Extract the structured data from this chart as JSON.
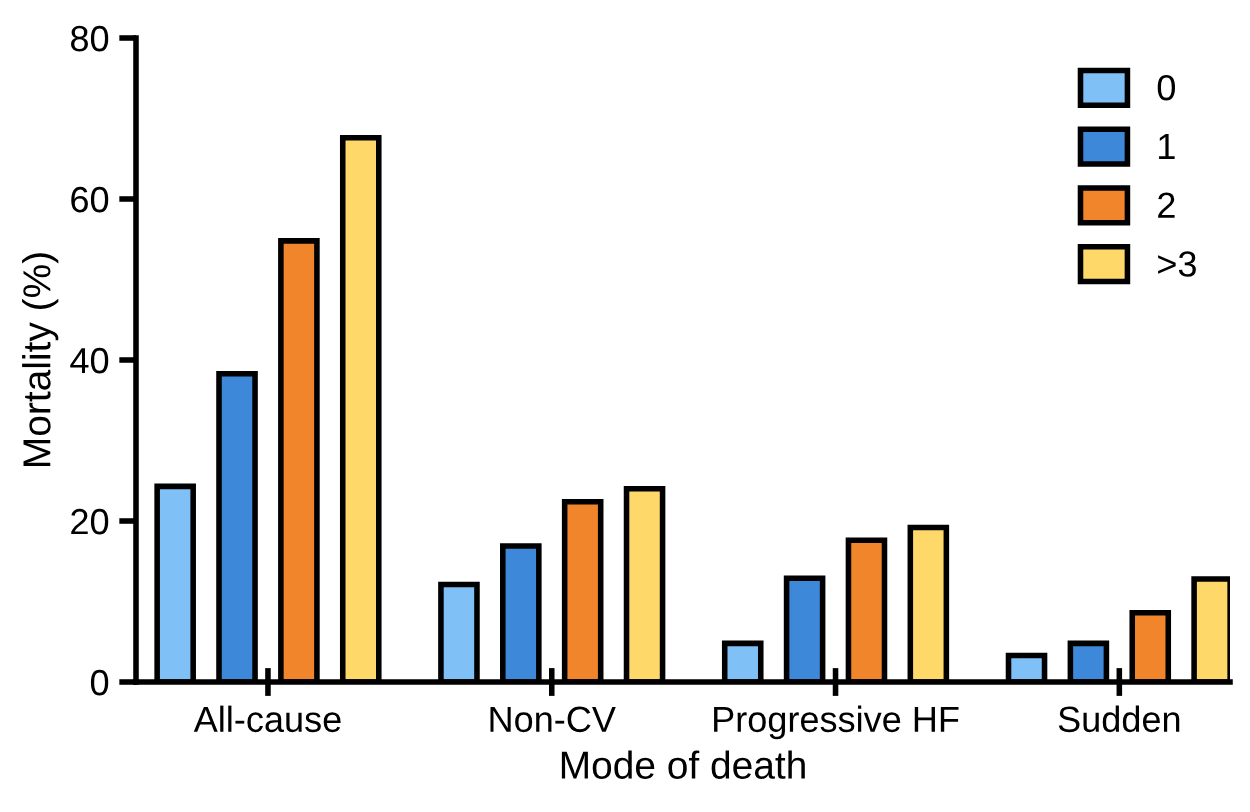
{
  "chart_data": {
    "type": "bar",
    "xlabel": "Mode of death",
    "ylabel": "Mortality (%)",
    "categories": [
      "All-cause",
      "Non-CV",
      "Progressive HF",
      "Sudden"
    ],
    "series": [
      {
        "name": "0",
        "color": "#7fc1f7",
        "values": [
          24.3,
          12.1,
          4.8,
          3.3
        ]
      },
      {
        "name": "1",
        "color": "#3d88d8",
        "values": [
          38.3,
          16.9,
          12.9,
          4.8
        ]
      },
      {
        "name": "2",
        "color": "#f0852b",
        "values": [
          54.8,
          22.4,
          17.6,
          8.6
        ]
      },
      {
        "name": ">3",
        "color": "#ffd86a",
        "values": [
          67.6,
          24.0,
          19.2,
          12.8
        ]
      }
    ],
    "ylim": [
      0,
      80
    ],
    "yticks": [
      0,
      20,
      40,
      60,
      80
    ],
    "grid": false,
    "legend": "top right"
  }
}
